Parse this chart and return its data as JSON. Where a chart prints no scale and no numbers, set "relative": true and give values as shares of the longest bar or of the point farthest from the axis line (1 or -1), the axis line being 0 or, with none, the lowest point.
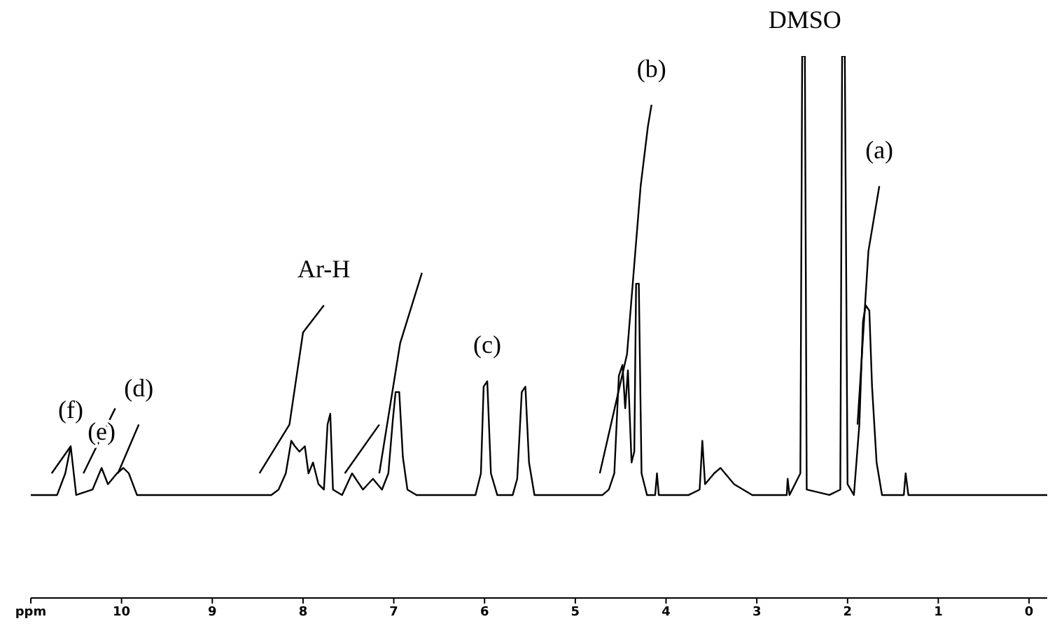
{
  "chart_data": {
    "type": "line",
    "relative": true,
    "marker": "none",
    "line_style": "solid",
    "xlim": [
      11,
      -0.2
    ],
    "xticks": [
      {
        "value": 11,
        "label": "ppm"
      },
      10,
      9,
      8,
      7,
      6,
      5,
      4,
      3,
      2,
      1,
      0
    ],
    "annotations": [
      {
        "text": "(f)",
        "x": 10.56,
        "y": 0.28
      },
      {
        "text": "(e)",
        "x": 10.22,
        "y": 0.24
      },
      {
        "text": "(d)",
        "x": 9.81,
        "y": 0.32
      },
      {
        "text": "Ar-H",
        "x": 7.77,
        "y": 0.54
      },
      {
        "text": "(c)",
        "x": 5.97,
        "y": 0.4
      },
      {
        "text": "(b)",
        "x": 4.16,
        "y": 0.91
      },
      {
        "text": "DMSO",
        "x": 2.47,
        "y": 1.0
      },
      {
        "text": "(a)",
        "x": 1.65,
        "y": 0.76
      }
    ],
    "series": [
      {
        "color": "#000000",
        "x": [
          11.0,
          10.71,
          10.62,
          10.56,
          10.5,
          10.32,
          10.22,
          10.15,
          10.05,
          9.98,
          9.92,
          9.83,
          9.75,
          8.35,
          8.27,
          8.19,
          8.13,
          8.09,
          8.04,
          7.98,
          7.94,
          7.89,
          7.83,
          7.77,
          7.73,
          7.7,
          7.67,
          7.57,
          7.46,
          7.34,
          7.23,
          7.13,
          7.06,
          7.01,
          6.98,
          6.94,
          6.9,
          6.85,
          6.75,
          6.1,
          6.04,
          6.01,
          5.97,
          5.93,
          5.86,
          5.69,
          5.64,
          5.59,
          5.55,
          5.51,
          5.45,
          4.7,
          4.63,
          4.57,
          4.52,
          4.48,
          4.45,
          4.42,
          4.38,
          4.35,
          4.33,
          4.3,
          4.27,
          4.21,
          4.12,
          4.1,
          4.08,
          3.75,
          3.63,
          3.6,
          3.57,
          3.47,
          3.4,
          3.25,
          3.05,
          2.67,
          2.66,
          2.64,
          2.52,
          2.5,
          2.47,
          2.45,
          2.2,
          2.08,
          2.06,
          2.03,
          2.0,
          1.93,
          1.87,
          1.83,
          1.8,
          1.76,
          1.73,
          1.68,
          1.62,
          1.55,
          1.38,
          1.36,
          1.33,
          -0.2
        ],
        "values": [
          0.19,
          0.19,
          0.23,
          0.28,
          0.19,
          0.2,
          0.24,
          0.21,
          0.23,
          0.24,
          0.23,
          0.19,
          0.19,
          0.19,
          0.2,
          0.23,
          0.29,
          0.28,
          0.27,
          0.28,
          0.23,
          0.25,
          0.21,
          0.2,
          0.32,
          0.34,
          0.2,
          0.19,
          0.23,
          0.2,
          0.22,
          0.2,
          0.23,
          0.33,
          0.38,
          0.38,
          0.26,
          0.2,
          0.19,
          0.19,
          0.23,
          0.39,
          0.4,
          0.23,
          0.19,
          0.19,
          0.22,
          0.38,
          0.39,
          0.25,
          0.19,
          0.19,
          0.2,
          0.23,
          0.41,
          0.43,
          0.35,
          0.42,
          0.25,
          0.27,
          0.58,
          0.58,
          0.23,
          0.19,
          0.19,
          0.23,
          0.19,
          0.19,
          0.2,
          0.29,
          0.21,
          0.23,
          0.24,
          0.21,
          0.19,
          0.19,
          0.22,
          0.19,
          0.23,
          1.0,
          1.0,
          0.2,
          0.19,
          0.2,
          1.0,
          1.0,
          0.21,
          0.19,
          0.32,
          0.51,
          0.54,
          0.53,
          0.39,
          0.25,
          0.19,
          0.19,
          0.19,
          0.23,
          0.19,
          0.19
        ]
      },
      {
        "color": "#000000",
        "x": [
          10.77,
          10.56
        ],
        "values": [
          0.23,
          0.28
        ]
      },
      {
        "color": "#000000",
        "x": [
          10.42,
          10.07
        ],
        "values": [
          0.23,
          0.35
        ]
      },
      {
        "color": "#000000",
        "x": [
          10.04,
          9.81
        ],
        "values": [
          0.23,
          0.32
        ]
      },
      {
        "color": "#000000",
        "x": [
          8.48,
          8.15,
          8.0,
          7.77
        ],
        "values": [
          0.23,
          0.32,
          0.49,
          0.54
        ]
      },
      {
        "color": "#000000",
        "x": [
          7.54,
          7.16
        ],
        "values": [
          0.23,
          0.32
        ]
      },
      {
        "color": "#000000",
        "x": [
          7.16,
          6.93,
          6.69
        ],
        "values": [
          0.23,
          0.47,
          0.6
        ]
      },
      {
        "color": "#000000",
        "x": [
          4.73,
          4.43,
          4.28,
          4.2,
          4.16
        ],
        "values": [
          0.23,
          0.45,
          0.76,
          0.87,
          0.91
        ]
      },
      {
        "color": "#000000",
        "x": [
          1.89,
          1.77,
          1.65
        ],
        "values": [
          0.32,
          0.64,
          0.76
        ]
      }
    ]
  }
}
